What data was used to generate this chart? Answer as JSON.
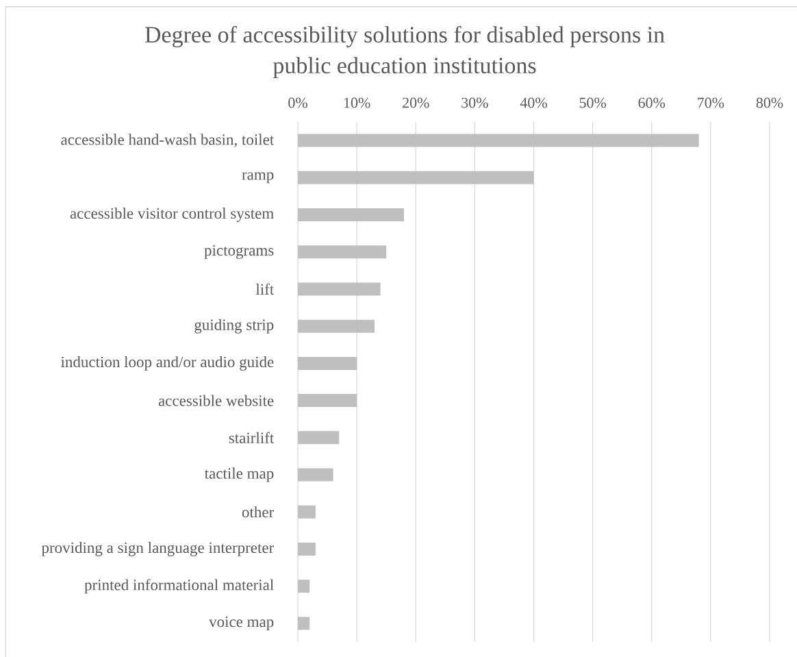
{
  "chart_data": {
    "type": "bar",
    "orientation": "horizontal",
    "title": "Degree of accessibility solutions for disabled persons in public education institutions",
    "categories": [
      "accessible hand-wash basin, toilet",
      "ramp",
      "accessible visitor control system",
      "pictograms",
      "lift",
      "guiding strip",
      "induction loop and/or audio guide",
      "accessible website",
      "stairlift",
      "tactile map",
      "other",
      "providing a sign language interpreter",
      "printed informational material",
      "voice map"
    ],
    "values": [
      68,
      40,
      18,
      15,
      14,
      13,
      10,
      10,
      7,
      6,
      3,
      3,
      2,
      2
    ],
    "color": "#bfbfbf",
    "xlim": [
      0,
      80
    ],
    "xticks": [
      {
        "value": 0,
        "label": "0%"
      },
      {
        "value": 10,
        "label": "10%"
      },
      {
        "value": 20,
        "label": "20%"
      },
      {
        "value": 30,
        "label": "30%"
      },
      {
        "value": 40,
        "label": "40%"
      },
      {
        "value": 50,
        "label": "50%"
      },
      {
        "value": 60,
        "label": "60%"
      },
      {
        "value": 70,
        "label": "70%"
      },
      {
        "value": 80,
        "label": "80%"
      }
    ],
    "grid": "x"
  }
}
